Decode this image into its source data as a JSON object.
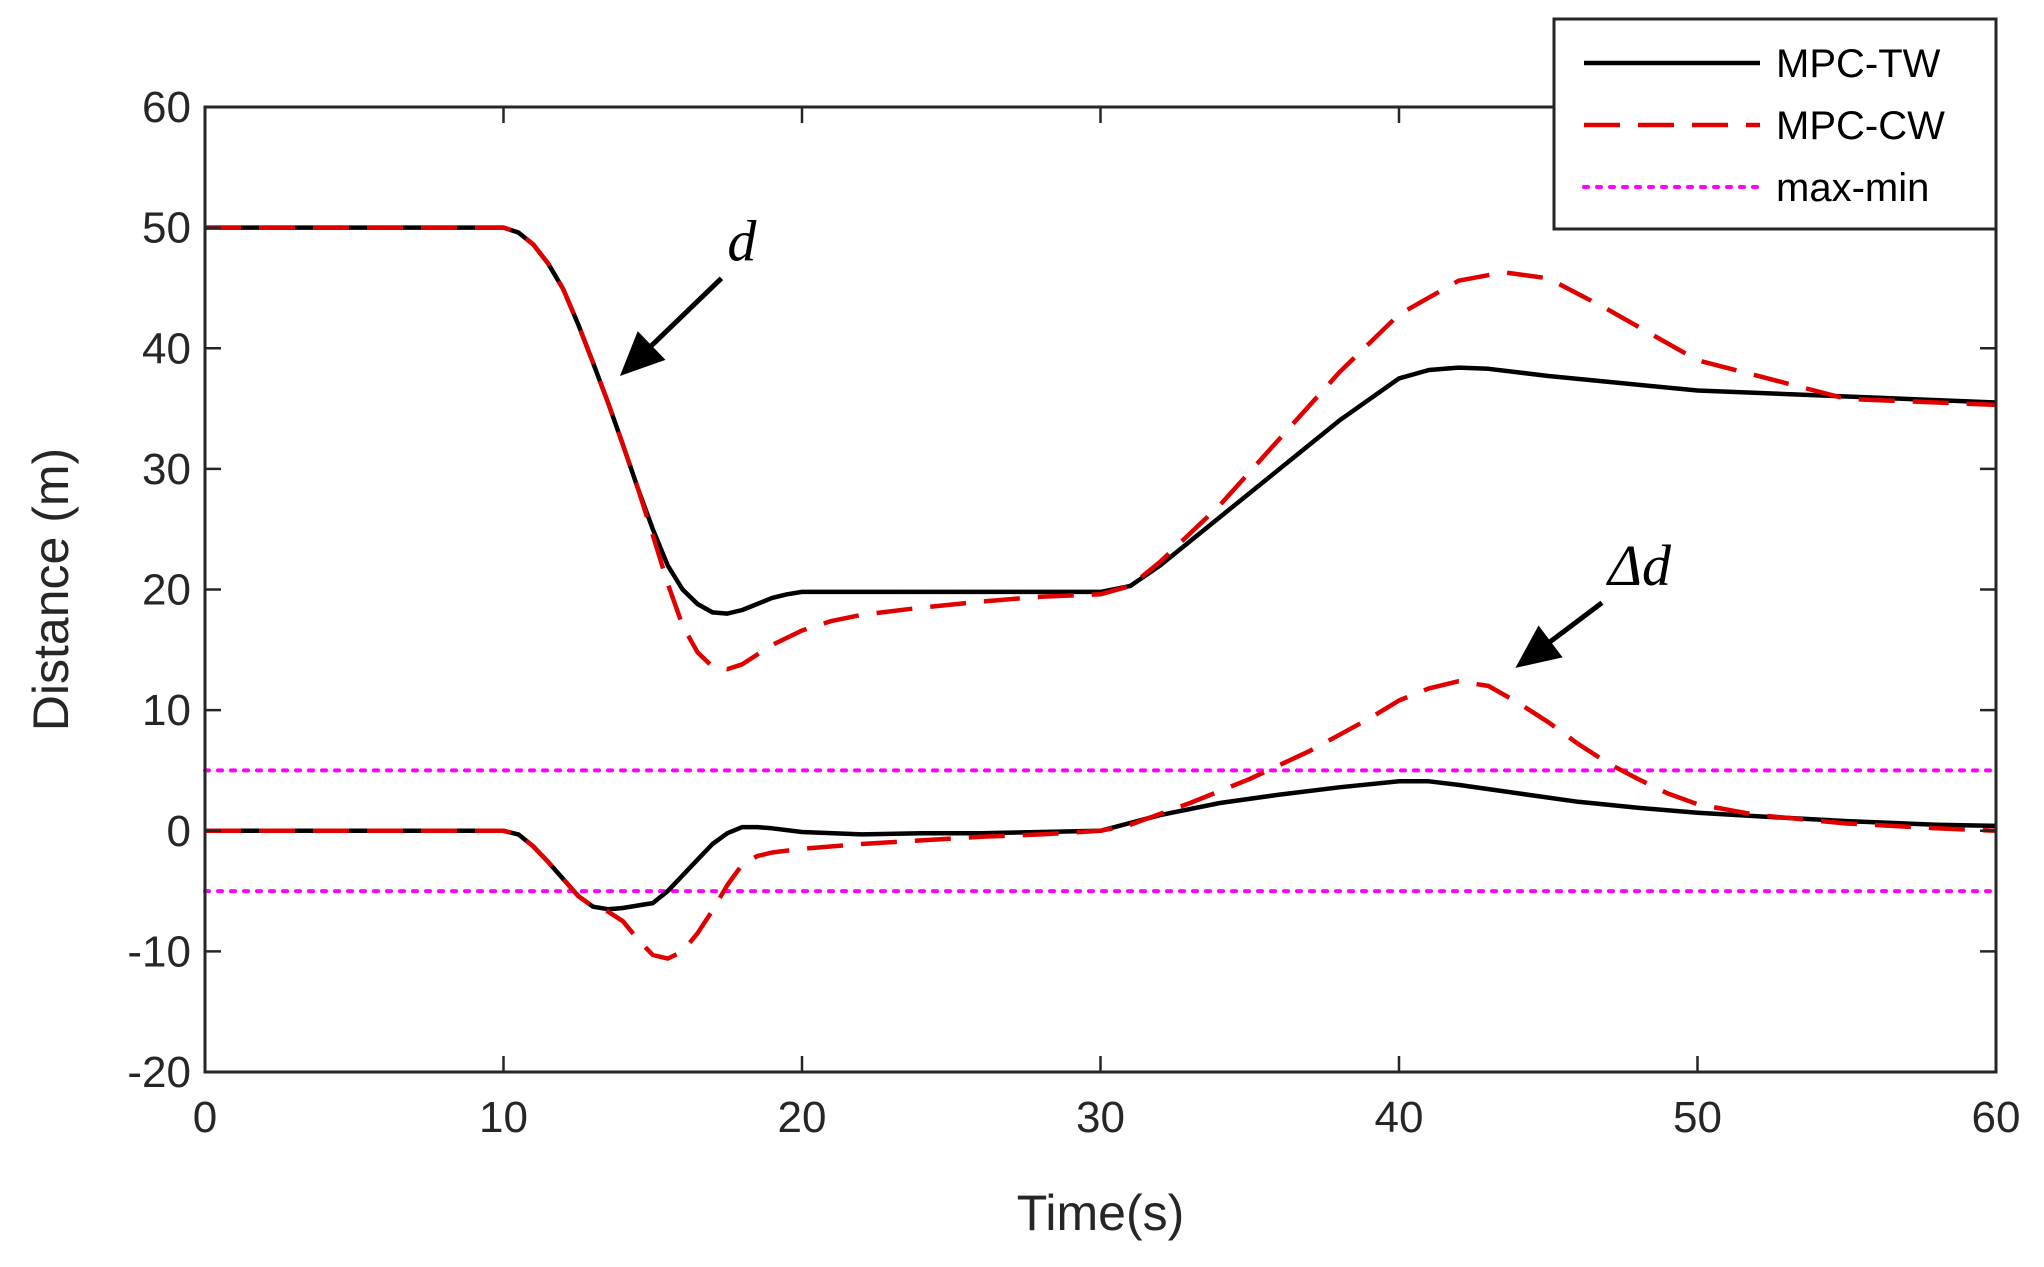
{
  "chart_data": {
    "type": "line",
    "title": "",
    "xlabel": "Time(s)",
    "ylabel": "Distance (m)",
    "xlim": [
      0,
      60
    ],
    "ylim": [
      -20,
      60
    ],
    "xticks": [
      0,
      10,
      20,
      30,
      40,
      50,
      60
    ],
    "yticks": [
      -20,
      -10,
      0,
      10,
      20,
      30,
      40,
      50,
      60
    ],
    "grid": false,
    "legend_position": "top-right",
    "series": [
      {
        "name": "MPC-TW",
        "role": "legend",
        "color": "#000000",
        "style": "solid",
        "x": [
          0,
          10,
          10.5,
          11,
          11.5,
          12,
          12.5,
          13,
          13.5,
          14,
          14.5,
          15,
          15.5,
          16,
          16.5,
          17,
          17.5,
          18,
          18.5,
          19,
          19.5,
          20,
          21,
          22,
          24,
          26,
          28,
          30,
          31,
          32,
          34,
          36,
          38,
          40,
          41,
          42,
          43,
          45,
          50,
          55,
          60
        ],
        "y": [
          50,
          50,
          49.6,
          48.6,
          47,
          44.9,
          42,
          38.8,
          35.5,
          32,
          28.4,
          25,
          22,
          20,
          18.8,
          18.1,
          18,
          18.3,
          18.8,
          19.3,
          19.6,
          19.8,
          19.8,
          19.8,
          19.8,
          19.8,
          19.8,
          19.8,
          20.3,
          22,
          26,
          30,
          34,
          37.5,
          38.2,
          38.4,
          38.3,
          37.7,
          36.5,
          36,
          35.5
        ]
      },
      {
        "name": "MPC-CW",
        "role": "legend",
        "color": "#e00000",
        "style": "dashed",
        "x": [
          0,
          10,
          10.5,
          11,
          11.5,
          12,
          12.5,
          13,
          13.5,
          14,
          14.5,
          15,
          15.5,
          16,
          16.5,
          17,
          17.5,
          18,
          18.5,
          19,
          20,
          21,
          22,
          24,
          26,
          28,
          30,
          31,
          32,
          34,
          36,
          38,
          40,
          42,
          43.5,
          45,
          47,
          50,
          55,
          60
        ],
        "y": [
          50,
          50,
          49.6,
          48.6,
          47,
          44.9,
          42,
          38.8,
          35.5,
          32,
          28.4,
          24.5,
          20.5,
          17,
          14.8,
          13.6,
          13.4,
          13.8,
          14.6,
          15.4,
          16.6,
          17.4,
          17.9,
          18.5,
          19,
          19.4,
          19.6,
          20.3,
          22.3,
          27,
          32.5,
          38,
          42.8,
          45.6,
          46.3,
          45.8,
          43.2,
          39,
          35.8,
          35.3
        ]
      },
      {
        "name": "MPC-TW Δd",
        "role": "unlabeled",
        "color": "#000000",
        "style": "solid",
        "x": [
          0,
          10,
          10.5,
          11,
          11.5,
          12,
          12.5,
          13,
          13.5,
          14,
          14.5,
          15,
          15.5,
          16,
          16.5,
          17,
          17.5,
          18,
          18.5,
          19,
          20,
          22,
          24,
          26,
          28,
          30,
          32,
          34,
          36,
          38,
          40,
          41,
          42,
          44,
          46,
          48,
          50,
          52,
          55,
          58,
          60
        ],
        "y": [
          0,
          0,
          -0.3,
          -1.3,
          -2.6,
          -4,
          -5.4,
          -6.3,
          -6.5,
          -6.4,
          -6.2,
          -6,
          -5,
          -3.7,
          -2.4,
          -1.1,
          -0.2,
          0.3,
          0.3,
          0.2,
          -0.1,
          -0.3,
          -0.2,
          -0.2,
          -0.1,
          0,
          1.3,
          2.3,
          3,
          3.6,
          4.1,
          4.1,
          3.8,
          3.1,
          2.4,
          1.9,
          1.5,
          1.2,
          0.8,
          0.5,
          0.4
        ]
      },
      {
        "name": "MPC-CW Δd",
        "role": "unlabeled",
        "color": "#e00000",
        "style": "dashed",
        "x": [
          0,
          10,
          10.5,
          11,
          11.5,
          12,
          12.5,
          13,
          13.5,
          14,
          14.5,
          15,
          15.5,
          16,
          16.5,
          17,
          17.5,
          18,
          18.5,
          19,
          20,
          22,
          24,
          26,
          28,
          30,
          31,
          33,
          35,
          37,
          39,
          40,
          41,
          42,
          43,
          44,
          45,
          46,
          47,
          48,
          49,
          50,
          52,
          55,
          58,
          60
        ],
        "y": [
          0,
          0,
          -0.3,
          -1.3,
          -2.6,
          -4,
          -5.4,
          -6.3,
          -6.7,
          -7.5,
          -9,
          -10.3,
          -10.6,
          -10,
          -8.5,
          -6.6,
          -4.5,
          -2.8,
          -2.1,
          -1.8,
          -1.5,
          -1.1,
          -0.8,
          -0.5,
          -0.3,
          0,
          0.5,
          2.3,
          4.3,
          6.6,
          9.3,
          10.8,
          11.8,
          12.4,
          12,
          10.6,
          9,
          7.2,
          5.6,
          4.3,
          3.1,
          2.2,
          1.3,
          0.6,
          0.2,
          0
        ]
      },
      {
        "name": "max-min",
        "role": "legend",
        "color": "#ff00ff",
        "style": "dotted",
        "x": [
          0,
          60
        ],
        "y": [
          5,
          5
        ]
      },
      {
        "name": "max-min (lower)",
        "role": "unlabeled",
        "color": "#ff00ff",
        "style": "dotted",
        "x": [
          0,
          60
        ],
        "y": [
          -5,
          -5
        ]
      }
    ],
    "annotations": [
      {
        "text": "d",
        "arrow_from": [
          17.3,
          45.8
        ],
        "arrow_to": [
          13.9,
          37.7
        ]
      },
      {
        "text": "Δd",
        "arrow_from": [
          46.8,
          18.9
        ],
        "arrow_to": [
          43.9,
          13.5
        ]
      }
    ]
  }
}
